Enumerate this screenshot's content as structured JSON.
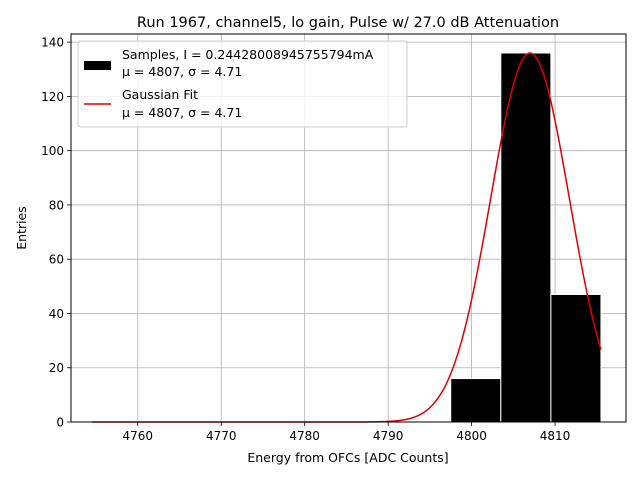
{
  "chart_data": {
    "type": "bar",
    "title": "Run 1967, channel5, lo gain, Pulse w/ 27.0 dB Attenuation",
    "xlabel": "Energy from OFCs [ADC Counts]",
    "ylabel": "Entries",
    "xlim": [
      4752,
      4818.5
    ],
    "ylim": [
      0,
      143
    ],
    "xticks": [
      4760,
      4770,
      4780,
      4790,
      4800,
      4810
    ],
    "yticks": [
      0,
      20,
      40,
      60,
      80,
      100,
      120,
      140
    ],
    "grid": true,
    "legend_position": "upper-left",
    "bins": [
      {
        "x0": 4797.5,
        "x1": 4803.5,
        "count": 16
      },
      {
        "x0": 4803.5,
        "x1": 4809.5,
        "count": 136
      },
      {
        "x0": 4809.5,
        "x1": 4815.5,
        "count": 47
      }
    ],
    "fit": {
      "mu": 4807,
      "sigma": 4.71,
      "amplitude": 136,
      "x_range": [
        4754.5,
        4815.5
      ]
    },
    "series": [
      {
        "name": "Samples, I = 0.24428008945755794mA",
        "stats": "μ = 4807, σ = 4.71",
        "color": "#000000"
      },
      {
        "name": "Gaussian Fit",
        "stats": "μ = 4807, σ = 4.71",
        "color": "#e00000"
      }
    ]
  }
}
